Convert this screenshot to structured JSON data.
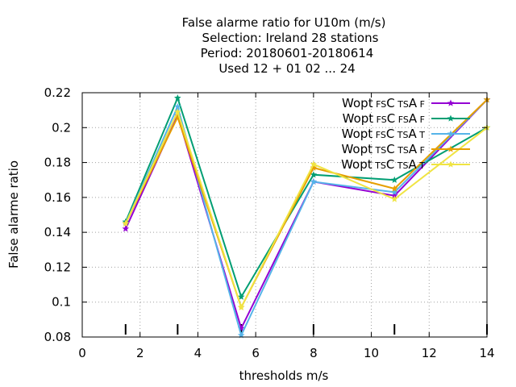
{
  "chart_data": {
    "type": "line",
    "title_lines": [
      "False alarme ratio  for U10m (m/s)",
      "Selection: Ireland     28 stations",
      "Period: 20180601-20180614",
      "Used  12 + 01 02 ... 24"
    ],
    "xlabel": "thresholds m/s",
    "ylabel": "False alarme ratio",
    "xlim": [
      0,
      14
    ],
    "ylim": [
      0.08,
      0.22
    ],
    "xticks": [
      "0",
      "2",
      "4",
      "6",
      "8",
      "10",
      "12",
      "14"
    ],
    "yticks": [
      "0.08",
      "0.1",
      "0.12",
      "0.14",
      "0.16",
      "0.18",
      "0.2",
      "0.22"
    ],
    "grid": true,
    "legend_position": "top-right",
    "threshold_markers": [
      1.5,
      3.3,
      5.5,
      8,
      10.8,
      14
    ],
    "x": [
      1.5,
      3.3,
      5.5,
      8,
      10.8,
      14
    ],
    "series": [
      {
        "name": "Wopt FS C TS A F",
        "legend": {
          "main": "Wopt",
          "parts": [
            [
              "FS",
              "sub"
            ],
            [
              "C",
              "main"
            ],
            [
              "TS",
              "sub"
            ],
            [
              "A",
              "main"
            ],
            [
              "F",
              "sub"
            ]
          ]
        },
        "color": "#9400d3",
        "values": [
          0.142,
          0.207,
          0.085,
          0.169,
          0.161,
          0.216
        ]
      },
      {
        "name": "Wopt FS C FS A F",
        "legend": {
          "main": "Wopt",
          "parts": [
            [
              "FS",
              "sub"
            ],
            [
              "C",
              "main"
            ],
            [
              "FS",
              "sub"
            ],
            [
              "A",
              "main"
            ],
            [
              "F",
              "sub"
            ]
          ]
        },
        "color": "#009e73",
        "values": [
          0.146,
          0.217,
          0.103,
          0.173,
          0.17,
          0.2
        ]
      },
      {
        "name": "Wopt FS C TS A T",
        "legend": {
          "main": "Wopt",
          "parts": [
            [
              "FS",
              "sub"
            ],
            [
              "C",
              "main"
            ],
            [
              "TS",
              "sub"
            ],
            [
              "A",
              "main"
            ],
            [
              "T",
              "sub"
            ]
          ]
        },
        "color": "#56b4e9",
        "values": [
          0.145,
          0.212,
          0.081,
          0.169,
          0.163,
          0.216
        ]
      },
      {
        "name": "Wopt TS C TS A F",
        "legend": {
          "main": "Wopt",
          "parts": [
            [
              "TS",
              "sub"
            ],
            [
              "C",
              "main"
            ],
            [
              "TS",
              "sub"
            ],
            [
              "A",
              "main"
            ],
            [
              "F",
              "sub"
            ]
          ]
        },
        "color": "#e69f00",
        "values": [
          0.145,
          0.206,
          0.097,
          0.177,
          0.165,
          0.216
        ]
      },
      {
        "name": "Wopt TS C TS A T",
        "legend": {
          "main": "Wopt",
          "parts": [
            [
              "TS",
              "sub"
            ],
            [
              "C",
              "main"
            ],
            [
              "TS",
              "sub"
            ],
            [
              "A",
              "main"
            ],
            [
              "T",
              "sub"
            ]
          ]
        },
        "color": "#f0e442",
        "values": [
          0.145,
          0.209,
          0.097,
          0.179,
          0.159,
          0.2
        ]
      }
    ]
  }
}
